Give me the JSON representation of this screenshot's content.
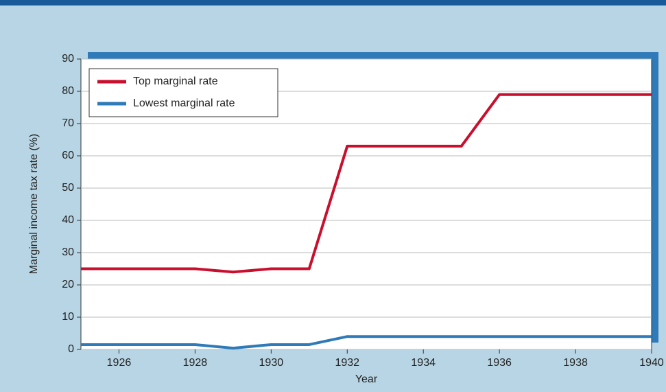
{
  "chart_data": {
    "type": "line",
    "x_label": "Year",
    "y_label": "Marginal income tax rate (%)",
    "x": [
      1925,
      1926,
      1927,
      1928,
      1929,
      1930,
      1931,
      1932,
      1933,
      1934,
      1935,
      1936,
      1937,
      1938,
      1939,
      1940
    ],
    "series": [
      {
        "name": "Top marginal rate",
        "color": "#c8102e",
        "values": [
          25,
          25,
          25,
          25,
          24,
          25,
          25,
          63,
          63,
          63,
          63,
          79,
          79,
          79,
          79,
          79
        ]
      },
      {
        "name": "Lowest marginal rate",
        "color": "#2f7ab8",
        "values": [
          1.5,
          1.5,
          1.5,
          1.5,
          0.4,
          1.5,
          1.5,
          4,
          4,
          4,
          4,
          4,
          4,
          4,
          4,
          4
        ]
      }
    ],
    "xlim": [
      1925,
      1940
    ],
    "xticks": [
      1926,
      1928,
      1930,
      1932,
      1934,
      1936,
      1938,
      1940
    ],
    "ylim": [
      0,
      90
    ],
    "yticks": [
      0,
      10,
      20,
      30,
      40,
      50,
      60,
      70,
      80,
      90
    ],
    "grid": true,
    "legend": "upper-left"
  }
}
